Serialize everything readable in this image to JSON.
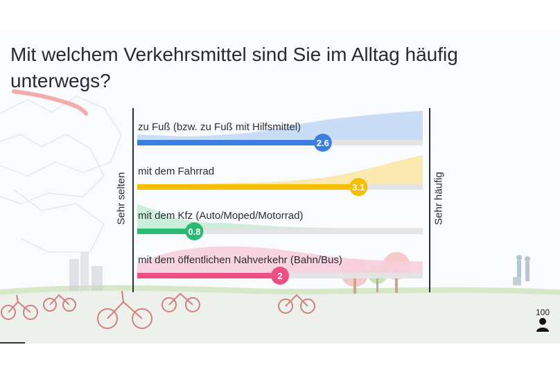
{
  "title": "Mit welchem Verkehrsmittel sind Sie im Alltag häufig unterwegs?",
  "axis": {
    "left_label": "Sehr selten",
    "right_label": "Sehr häufig"
  },
  "respondent_count": "100",
  "icons": {
    "respondents": "person-icon"
  },
  "colors": {
    "background": "#f9fbfc",
    "track": "#e4e4e4",
    "title": "#262a33"
  },
  "chart_data": {
    "type": "bar",
    "orientation": "horizontal",
    "xlim": [
      0,
      4
    ],
    "categories": [
      "zu Fuß (bzw. zu Fuß mit Hilfsmittel)",
      "mit dem Fahrrad",
      "mit dem Kfz (Auto/Moped/Motorrad)",
      "mit dem öffentlichen Nahverkehr (Bahn/Bus)"
    ],
    "values": [
      2.6,
      3.1,
      0.8,
      2
    ],
    "value_labels": [
      "2.6",
      "3.1",
      "0.8",
      "2"
    ],
    "colors": [
      "#3d7fe0",
      "#f5bf00",
      "#2aba73",
      "#ee4f82"
    ],
    "distribution_colors": [
      "#c4d9f5",
      "#fbe7a6",
      "#c7ecd7",
      "#f7cfdd"
    ],
    "distributions": [
      [
        0.25,
        0.24,
        0.22,
        0.2,
        0.2,
        0.22,
        0.25,
        0.28,
        0.32,
        0.38,
        0.46,
        0.55,
        0.63,
        0.7,
        0.76,
        0.81,
        0.86,
        0.9,
        0.94,
        0.97,
        1.0
      ],
      [
        0.06,
        0.07,
        0.08,
        0.09,
        0.1,
        0.11,
        0.12,
        0.13,
        0.14,
        0.15,
        0.17,
        0.2,
        0.24,
        0.29,
        0.36,
        0.45,
        0.56,
        0.67,
        0.79,
        0.9,
        1.0
      ],
      [
        0.85,
        0.7,
        0.52,
        0.38,
        0.3,
        0.27,
        0.26,
        0.24,
        0.21,
        0.18,
        0.15,
        0.13,
        0.12,
        0.11,
        0.1,
        0.1,
        0.1,
        0.1,
        0.1,
        0.1,
        0.1
      ],
      [
        0.4,
        0.55,
        0.7,
        0.8,
        0.86,
        0.9,
        0.92,
        0.92,
        0.9,
        0.87,
        0.82,
        0.76,
        0.7,
        0.64,
        0.58,
        0.54,
        0.5,
        0.48,
        0.46,
        0.45,
        0.45
      ]
    ]
  }
}
